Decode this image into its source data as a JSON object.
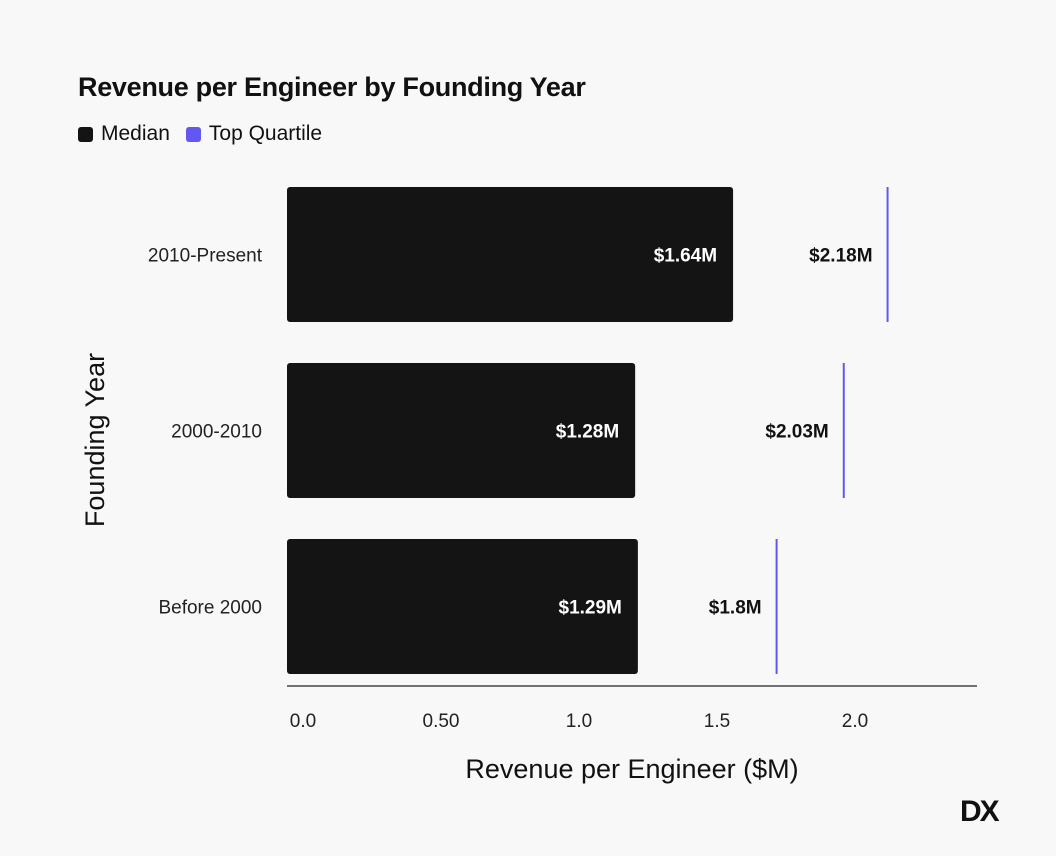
{
  "chart_data": {
    "type": "bar",
    "orientation": "horizontal",
    "title": "Revenue per Engineer by Founding Year",
    "xlabel": "Revenue per Engineer ($M)",
    "ylabel": "Founding Year",
    "categories": [
      "2010-Present",
      "2000-2010",
      "Before 2000"
    ],
    "series": [
      {
        "name": "Median",
        "values": [
          1.64,
          1.28,
          1.29
        ],
        "labels": [
          "$1.64M",
          "$1.28M",
          "$1.29M"
        ],
        "color": "#141414",
        "mark": "bar"
      },
      {
        "name": "Top Quartile",
        "values": [
          2.18,
          2.03,
          1.8
        ],
        "labels": [
          "$2.18M",
          "$2.03M",
          "$1.8M"
        ],
        "color": "#6257f0",
        "mark": "line"
      }
    ],
    "xticks": [
      0.0,
      0.5,
      1.0,
      1.5,
      2.0
    ],
    "xtick_labels": [
      "0.0",
      "0.50",
      "1.0",
      "1.5",
      "2.0"
    ],
    "xlim": [
      0,
      2.5
    ],
    "grid": false,
    "legend_position": "top-left"
  },
  "logo": "DX"
}
